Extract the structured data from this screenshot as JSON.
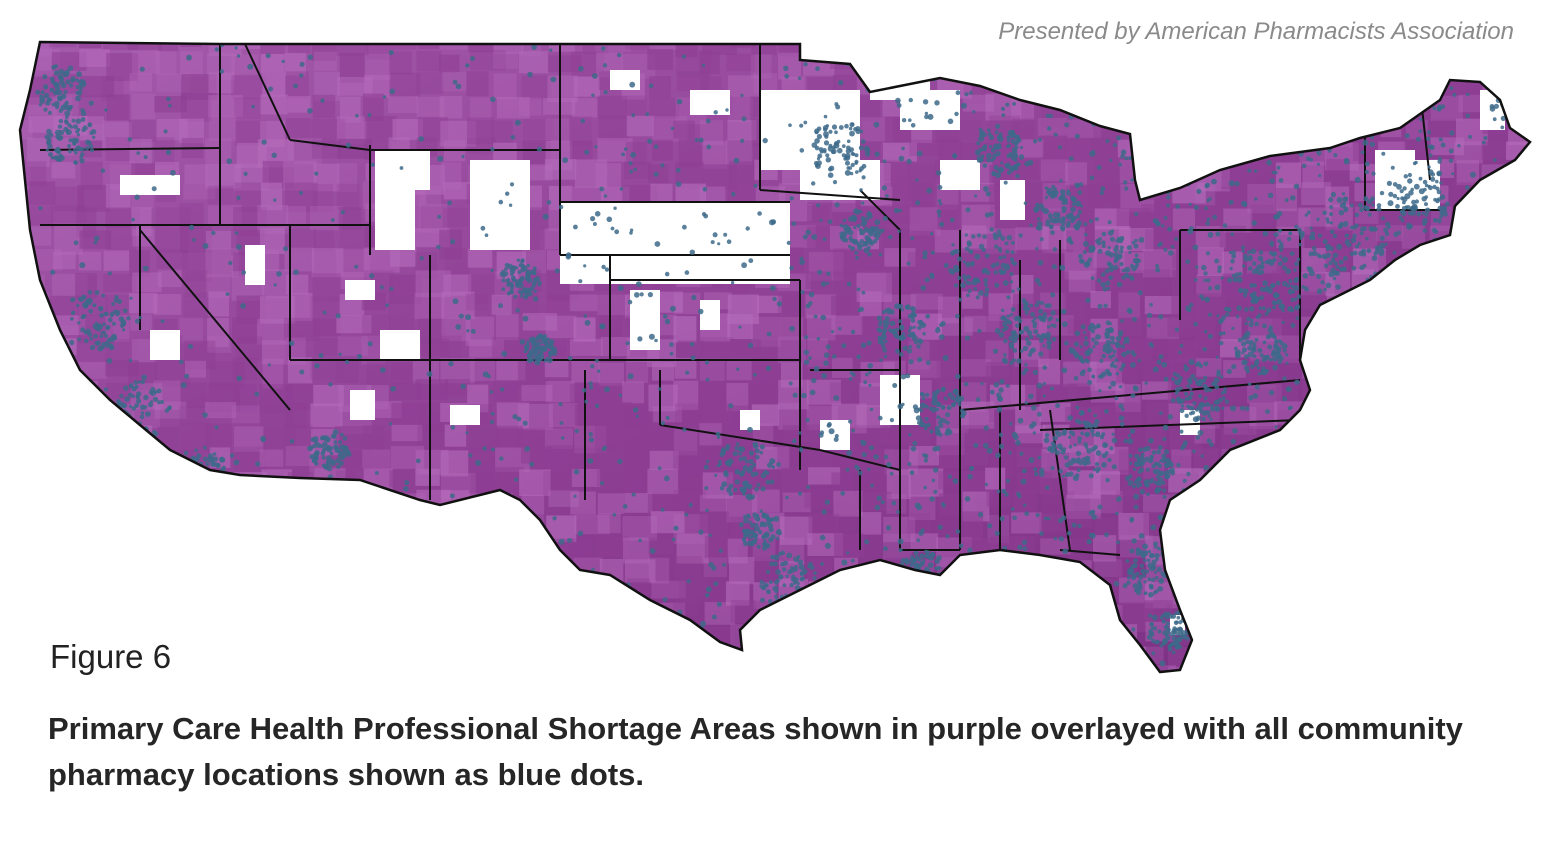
{
  "credit": "Presented by American Pharmacists Association",
  "figure_label": "Figure 6",
  "caption": "Primary Care Health Professional Shortage Areas shown in purple overlayed with all community pharmacy locations shown as blue dots.",
  "map": {
    "region": "Contiguous United States",
    "shortage_area_color": "#8e3f94",
    "shortage_area_light_color": "#b56bbb",
    "pharmacy_dot_color": "#3d6a8a",
    "boundary_color": "#111111",
    "background_color": "#ffffff"
  }
}
